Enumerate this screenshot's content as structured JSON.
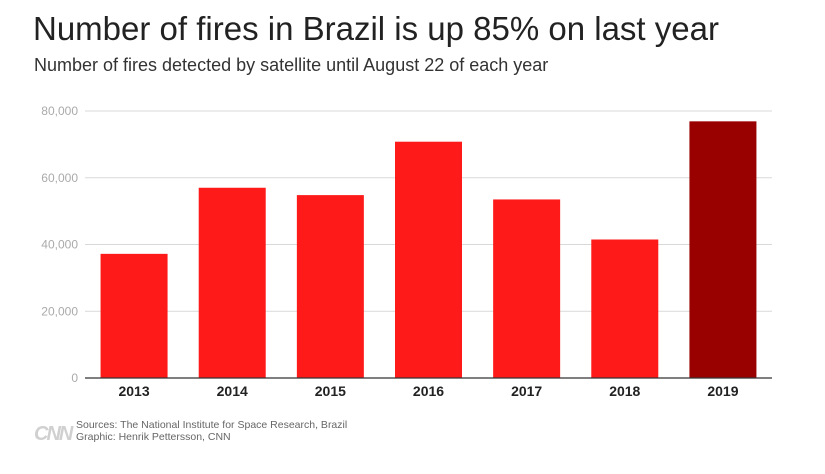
{
  "title": "Number of fires in Brazil is up 85% on last year",
  "subtitle": "Number of fires detected by satellite until August 22 of each year",
  "footer": {
    "logo_text": "CNN",
    "source_line": "Sources: The National Institute for Space Research, Brazil",
    "credit_line": "Graphic: Henrik Pettersson, CNN"
  },
  "colors": {
    "bar": "#ff1a1a",
    "highlight_bar": "#990000",
    "grid": "#d9d9d9",
    "tick_text": "#aaaaaa"
  },
  "chart_data": {
    "type": "bar",
    "categories": [
      "2013",
      "2014",
      "2015",
      "2016",
      "2017",
      "2018",
      "2019"
    ],
    "values": [
      37200,
      57000,
      54800,
      70800,
      53500,
      41500,
      76900
    ],
    "highlight_index": 6,
    "ylim": [
      0,
      80000
    ],
    "yticks": [
      0,
      20000,
      40000,
      60000,
      80000
    ],
    "ytick_labels": [
      "0",
      "20,000",
      "40,000",
      "60,000",
      "80,000"
    ],
    "grid": true,
    "xlabel": "",
    "ylabel": ""
  }
}
